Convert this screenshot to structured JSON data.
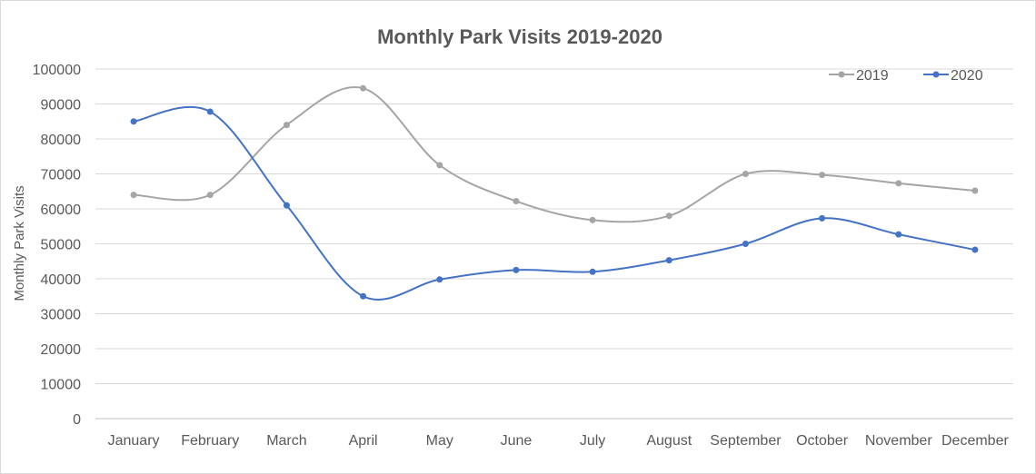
{
  "chart_data": {
    "type": "line",
    "title": "Monthly Park Visits 2019-2020",
    "xlabel": "",
    "ylabel": "Monthly Park Visits",
    "categories": [
      "January",
      "February",
      "March",
      "April",
      "May",
      "June",
      "July",
      "August",
      "September",
      "October",
      "November",
      "December"
    ],
    "ylim": [
      0,
      100000
    ],
    "yticks": [
      "0",
      "10000",
      "20000",
      "30000",
      "40000",
      "50000",
      "60000",
      "70000",
      "80000",
      "90000",
      "100000"
    ],
    "grid": true,
    "smooth": true,
    "legend_position": "top-right",
    "series": [
      {
        "name": "2019",
        "color": "#a5a5a5",
        "values": [
          64000,
          64000,
          84000,
          94500,
          72500,
          62200,
          56800,
          58000,
          70000,
          69700,
          67300,
          65200
        ]
      },
      {
        "name": "2020",
        "color": "#4472c4",
        "values": [
          85000,
          87800,
          61000,
          35000,
          39800,
          42500,
          42000,
          45300,
          50000,
          57300,
          52700,
          48300
        ]
      }
    ]
  }
}
